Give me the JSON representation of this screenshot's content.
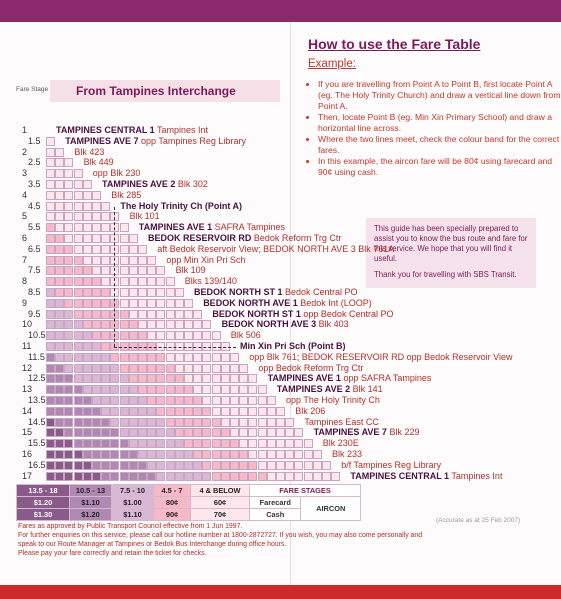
{
  "instructions": {
    "title": "How to use the Fare Table",
    "example_label": "Example:",
    "bullets": [
      "If you are travelling from Point A to Point B, first locate Point A (eg. The Holy Trinity Church) and draw a vertical line down from Point A.",
      "Then, locate Point B (eg. Min Xin Primary School) and draw a horizontal line across.",
      "Where the two lines meet, check the colour band for the correct fares.",
      "In this example, the aircon fare will be 80¢ using farecard and 90¢ using cash."
    ]
  },
  "guide_box": {
    "line1": "This guide has been specially prepared to assist you to know the bus route and fare for this service. We hope that you will find it useful.",
    "line2": "Thank you for travelling with SBS Transit."
  },
  "table_header": {
    "fare_stage_label": "Fare Stage No.",
    "from_label": "From Tampines Interchange"
  },
  "stages": [
    {
      "no": "1",
      "strong": "TAMPINES CENTRAL 1",
      "rest": " Tampines Int"
    },
    {
      "no": "1.5",
      "strong": "TAMPINES AVE 7",
      "rest": " opp Tampines Reg Library"
    },
    {
      "no": "2",
      "strong": "",
      "rest": "Blk 423"
    },
    {
      "no": "2.5",
      "strong": "",
      "rest": "Blk 449"
    },
    {
      "no": "3",
      "strong": "",
      "rest": "opp Blk 230"
    },
    {
      "no": "3.5",
      "strong": "TAMPINES AVE 2",
      "rest": " Blk 302"
    },
    {
      "no": "4",
      "strong": "",
      "rest": "Blk 285"
    },
    {
      "no": "4.5",
      "strong": "The Holy Trinity Ch (Point A)",
      "rest": ""
    },
    {
      "no": "5",
      "strong": "",
      "rest": "Blk 101"
    },
    {
      "no": "5.5",
      "strong": "TAMPINES AVE 1",
      "rest": " SAFRA Tampines"
    },
    {
      "no": "6",
      "strong": "BEDOK RESERVOIR RD",
      "rest": " Bedok Reform Trg Ctr"
    },
    {
      "no": "6.5",
      "strong": "",
      "rest": "aft Bedok Reservoir View; BEDOK NORTH AVE 3 Blk 761A"
    },
    {
      "no": "7",
      "strong": "",
      "rest": "opp Min Xin Pri Sch"
    },
    {
      "no": "7.5",
      "strong": "",
      "rest": "Blk 109"
    },
    {
      "no": "8",
      "strong": "",
      "rest": "Blks 139/140"
    },
    {
      "no": "8.5",
      "strong": "BEDOK NORTH ST 1",
      "rest": " Bedok Central PO"
    },
    {
      "no": "9",
      "strong": "BEDOK NORTH AVE 1",
      "rest": " Bedok Int (LOOP)"
    },
    {
      "no": "9.5",
      "strong": "BEDOK NORTH ST 1",
      "rest": " opp Bedok Central PO"
    },
    {
      "no": "10",
      "strong": "BEDOK NORTH AVE 3",
      "rest": " Blk 403"
    },
    {
      "no": "10.5",
      "strong": "",
      "rest": "Blk 506"
    },
    {
      "no": "11",
      "strong": "Min Xin Pri Sch (Point B)",
      "rest": ""
    },
    {
      "no": "11.5",
      "strong": "",
      "rest": "opp Blk 761; BEDOK RESERVOIR RD opp Bedok Reservoir View"
    },
    {
      "no": "12",
      "strong": "",
      "rest": "opp Bedok Reform Trg Ctr"
    },
    {
      "no": "12.5",
      "strong": "TAMPINES AVE 1",
      "rest": " opp SAFRA Tampines"
    },
    {
      "no": "13",
      "strong": "TAMPINES AVE 2",
      "rest": " Blk 141"
    },
    {
      "no": "13.5",
      "strong": "",
      "rest": "opp The Holy Trinity Ch"
    },
    {
      "no": "14",
      "strong": "",
      "rest": "Blk 206"
    },
    {
      "no": "14.5",
      "strong": "",
      "rest": "Tampines East CC"
    },
    {
      "no": "15",
      "strong": "TAMPINES AVE 7",
      "rest": " Blk 229"
    },
    {
      "no": "15.5",
      "strong": "",
      "rest": "Blk 230E"
    },
    {
      "no": "16",
      "strong": "",
      "rest": "Blk 233"
    },
    {
      "no": "16.5",
      "strong": "",
      "rest": "b/f Tampines Reg Library"
    },
    {
      "no": "17",
      "strong": "TAMPINES CENTRAL 1",
      "rest": " Tampines Int"
    }
  ],
  "fares": {
    "bands": [
      "13.5 - 18",
      "10.5 - 13",
      "7.5 - 10",
      "4.5 - 7",
      "4 & BELOW"
    ],
    "farecard": [
      "$1.20",
      "$1.10",
      "$1.00",
      "80¢",
      "60¢"
    ],
    "cash": [
      "$1.30",
      "$1.20",
      "$1.10",
      "90¢",
      "70¢"
    ],
    "fare_stages_label": "FARE STAGES",
    "farecard_label": "Farecard",
    "cash_label": "Cash",
    "aircon_label": "AIRCON",
    "band_colors": [
      "#8a5a8a",
      "#b089b3",
      "#d9b8d6",
      "#f6b9c8",
      "#fde6ec"
    ]
  },
  "accurate_note": "(Accurate as at 25 Feb 2007)",
  "footer": [
    "Fares as approved by Public Transport Council effective from 1 Jun 1997.",
    "For further enquiries on this service, please call our hotline number at 1800-2872727.  If you wish, you may also come personally and speak to our Route Manager at Tampines or Bedok Bus Interchange during office hours.",
    "Please pay your fare correctly and retain the ticket for checks."
  ]
}
